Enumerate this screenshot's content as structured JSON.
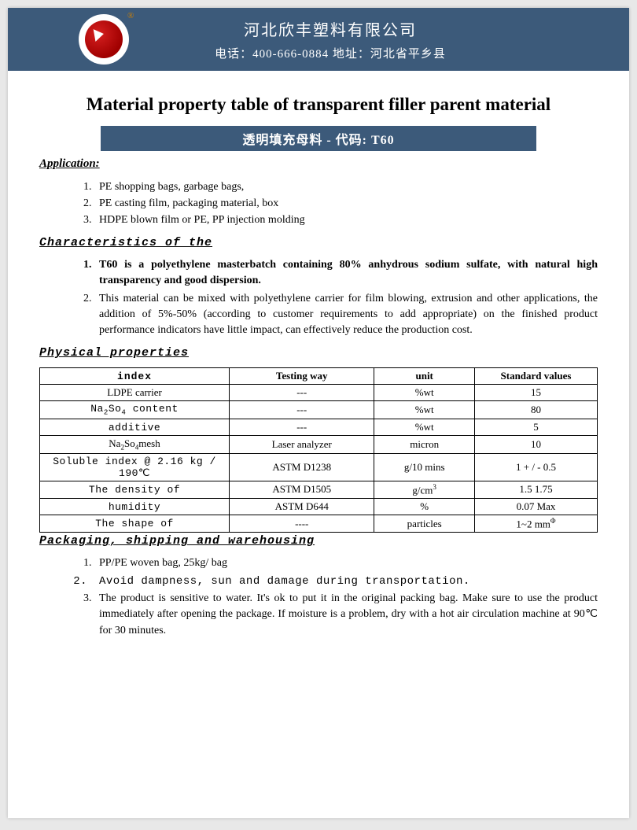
{
  "header": {
    "company_name": "河北欣丰塑料有限公司",
    "contact": "电话：400-666-0884 地址：河北省平乡县",
    "band_color": "#3c5a7a",
    "logo_bg": "#ffffff",
    "logo_fill": "#c01818",
    "reg_mark": "®"
  },
  "title": "Material property table of transparent filler parent material",
  "code_banner": "透明填充母料  - 代码: T60",
  "sections": {
    "application": {
      "heading": "Application:",
      "items": [
        "PE shopping bags, garbage bags,",
        "PE casting film, packaging material, box",
        "HDPE blown film or PE, PP injection molding"
      ]
    },
    "characteristics": {
      "heading": "Characteristics of the",
      "items": [
        {
          "text": "T60 is a polyethylene masterbatch containing 80% anhydrous sodium sulfate, with natural high transparency and good dispersion.",
          "bold": true
        },
        {
          "text": "This material can be mixed with polyethylene carrier for film blowing, extrusion and other applications, the addition of 5%-50% (according to customer requirements to add appropriate) on the finished product performance indicators have little impact, can effectively reduce the production cost.",
          "bold": false
        }
      ]
    },
    "physical": {
      "heading": "Physical properties",
      "columns": [
        "index",
        "Testing way",
        "unit",
        "Standard values"
      ],
      "col_widths_pct": [
        34,
        26,
        18,
        22
      ],
      "rows": [
        {
          "index": "LDPE carrier",
          "testing": "---",
          "unit": "%wt",
          "value": "15",
          "mono": false
        },
        {
          "index": "Na₂So₄  content",
          "testing": "---",
          "unit": "%wt",
          "value": "80",
          "mono": true
        },
        {
          "index": "additive",
          "testing": "---",
          "unit": "%wt",
          "value": "5",
          "mono": true
        },
        {
          "index": "Na₂So₄mesh",
          "testing": "Laser analyzer",
          "unit": "micron",
          "value": "10",
          "mono": false
        },
        {
          "index": "Soluble index @ 2.16 kg / 190℃",
          "testing": "ASTM D1238",
          "unit": "g/10 mins",
          "value": "1 + / - 0.5",
          "mono": true
        },
        {
          "index": "The density of",
          "testing": "ASTM D1505",
          "unit": "g/cm³",
          "value": "1.5 1.75",
          "mono": true
        },
        {
          "index": "humidity",
          "testing": "ASTM D644",
          "unit": "%",
          "value": "0.07 Max",
          "mono": true
        },
        {
          "index": "The shape of",
          "testing": "----",
          "unit": "particles",
          "value": "1~2 mmΦ",
          "mono": true
        }
      ]
    },
    "packaging": {
      "heading": "Packaging, shipping and warehousing",
      "items": [
        {
          "text": "PP/PE woven bag, 25kg/ bag",
          "mono": false
        },
        {
          "text": "Avoid dampness, sun and damage during transportation.",
          "mono": true
        },
        {
          "text": "The product is sensitive to water. It's ok to put it in the original packing bag. Make sure to use the product immediately after opening the package. If moisture is a problem, dry with a hot air circulation machine at 90℃ for 30 minutes.",
          "mono": false
        }
      ]
    }
  },
  "colors": {
    "page_bg": "#e8e8e8",
    "paper_bg": "#ffffff",
    "band": "#3c5a7a",
    "text": "#000000",
    "border": "#000000"
  }
}
